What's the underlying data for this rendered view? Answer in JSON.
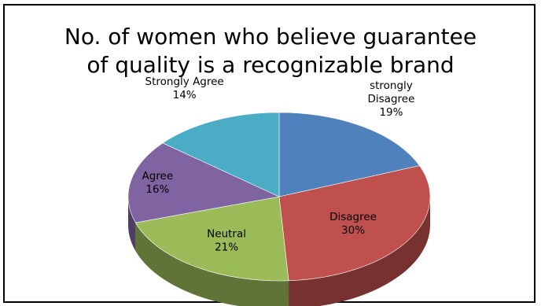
{
  "chart_data": {
    "type": "pie",
    "title_line1": "No. of women who believe guarantee",
    "title_line2": "of quality is a recognizable brand",
    "slices": [
      {
        "name": "strongly Disagree",
        "name_line1": "strongly",
        "name_line2": "Disagree",
        "percent": 19,
        "percent_label": "19%",
        "color": "#4F81BD"
      },
      {
        "name": "Disagree",
        "name_line1": "Disagree",
        "percent": 30,
        "percent_label": "30%",
        "color": "#C0504D"
      },
      {
        "name": "Neutral",
        "name_line1": "Neutral",
        "percent": 21,
        "percent_label": "21%",
        "color": "#9BBB59"
      },
      {
        "name": "Agree",
        "name_line1": "Agree",
        "percent": 16,
        "percent_label": "16%",
        "color": "#8064A2"
      },
      {
        "name": "Strongly Agree",
        "name_line1": "Strongly Agree",
        "percent": 14,
        "percent_label": "14%",
        "color": "#4BACC6"
      }
    ],
    "style": "3d-pie"
  }
}
